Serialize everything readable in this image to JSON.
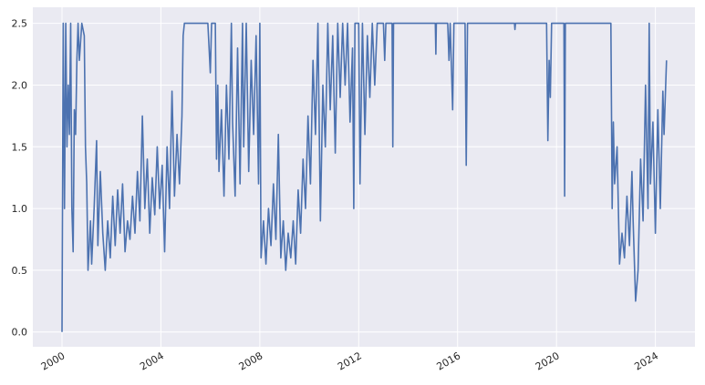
{
  "chart_data": {
    "type": "line",
    "x": [
      2000.0,
      2000.05,
      2000.1,
      2000.15,
      2000.2,
      2000.25,
      2000.3,
      2000.35,
      2000.4,
      2000.45,
      2000.5,
      2000.55,
      2000.6,
      2000.65,
      2000.7,
      2000.8,
      2000.9,
      2000.95,
      2001.0,
      2001.05,
      2001.15,
      2001.2,
      2001.3,
      2001.4,
      2001.45,
      2001.55,
      2001.65,
      2001.75,
      2001.85,
      2001.95,
      2002.05,
      2002.15,
      2002.25,
      2002.35,
      2002.45,
      2002.55,
      2002.65,
      2002.75,
      2002.85,
      2002.95,
      2003.05,
      2003.15,
      2003.25,
      2003.35,
      2003.45,
      2003.55,
      2003.65,
      2003.75,
      2003.85,
      2003.95,
      2004.05,
      2004.15,
      2004.25,
      2004.35,
      2004.45,
      2004.55,
      2004.65,
      2004.75,
      2004.85,
      2004.9,
      2004.95,
      2005.9,
      2006.0,
      2006.05,
      2006.2,
      2006.25,
      2006.3,
      2006.35,
      2006.45,
      2006.55,
      2006.65,
      2006.75,
      2006.85,
      2006.9,
      2007.0,
      2007.1,
      2007.2,
      2007.3,
      2007.35,
      2007.45,
      2007.55,
      2007.65,
      2007.75,
      2007.85,
      2007.95,
      2008.0,
      2008.05,
      2008.15,
      2008.25,
      2008.35,
      2008.45,
      2008.55,
      2008.65,
      2008.75,
      2008.85,
      2008.95,
      2009.05,
      2009.15,
      2009.25,
      2009.35,
      2009.45,
      2009.55,
      2009.65,
      2009.75,
      2009.85,
      2009.95,
      2010.05,
      2010.15,
      2010.25,
      2010.35,
      2010.45,
      2010.55,
      2010.65,
      2010.75,
      2010.85,
      2010.95,
      2011.05,
      2011.15,
      2011.25,
      2011.35,
      2011.45,
      2011.55,
      2011.65,
      2011.75,
      2011.8,
      2011.85,
      2012.0,
      2012.05,
      2012.15,
      2012.25,
      2012.35,
      2012.45,
      2012.55,
      2012.65,
      2012.75,
      2013.0,
      2013.05,
      2013.1,
      2013.35,
      2013.38,
      2013.41,
      2015.1,
      2015.12,
      2015.14,
      2015.6,
      2015.65,
      2015.7,
      2015.8,
      2015.85,
      2016.3,
      2016.35,
      2016.4,
      2018.3,
      2018.32,
      2018.34,
      2019.6,
      2019.65,
      2019.7,
      2019.75,
      2019.8,
      2020.3,
      2020.33,
      2020.36,
      2022.2,
      2022.25,
      2022.3,
      2022.35,
      2022.45,
      2022.55,
      2022.65,
      2022.75,
      2022.85,
      2022.95,
      2023.05,
      2023.1,
      2023.2,
      2023.3,
      2023.4,
      2023.5,
      2023.6,
      2023.7,
      2023.75,
      2023.8,
      2023.9,
      2024.0,
      2024.1,
      2024.2,
      2024.3,
      2024.35,
      2024.45
    ],
    "series": [
      {
        "color": "#4c72b0",
        "values": [
          0.0,
          2.5,
          1.0,
          2.5,
          1.5,
          2.0,
          1.6,
          2.5,
          1.0,
          0.65,
          1.8,
          1.6,
          2.2,
          2.5,
          2.2,
          2.5,
          2.4,
          1.5,
          1.2,
          0.5,
          0.9,
          0.55,
          1.0,
          1.55,
          0.7,
          1.3,
          0.8,
          0.5,
          0.9,
          0.6,
          1.1,
          0.7,
          1.15,
          0.8,
          1.2,
          0.65,
          0.9,
          0.75,
          1.1,
          0.8,
          1.3,
          0.9,
          1.75,
          1.0,
          1.4,
          0.8,
          1.25,
          0.95,
          1.5,
          1.0,
          1.35,
          0.65,
          1.5,
          1.0,
          1.95,
          1.1,
          1.6,
          1.2,
          1.75,
          2.4,
          2.5,
          2.5,
          2.1,
          2.5,
          2.5,
          1.4,
          2.0,
          1.3,
          1.8,
          1.1,
          2.0,
          1.4,
          2.5,
          1.7,
          1.1,
          2.3,
          1.2,
          2.5,
          1.5,
          2.5,
          1.3,
          2.2,
          1.6,
          2.4,
          1.2,
          2.5,
          0.6,
          0.9,
          0.55,
          1.0,
          0.7,
          1.2,
          0.75,
          1.6,
          0.6,
          0.9,
          0.5,
          0.8,
          0.6,
          0.9,
          0.55,
          1.15,
          0.8,
          1.4,
          1.0,
          1.75,
          1.2,
          2.2,
          1.6,
          2.5,
          0.9,
          2.0,
          1.5,
          2.5,
          1.8,
          2.4,
          1.45,
          2.5,
          1.9,
          2.5,
          2.0,
          2.5,
          1.7,
          2.3,
          1.0,
          2.5,
          2.5,
          1.2,
          2.5,
          1.6,
          2.4,
          1.9,
          2.5,
          2.0,
          2.5,
          2.5,
          2.2,
          2.5,
          2.5,
          1.5,
          2.5,
          2.5,
          2.25,
          2.5,
          2.5,
          2.2,
          2.5,
          1.8,
          2.5,
          2.5,
          1.35,
          2.5,
          2.5,
          2.45,
          2.5,
          2.5,
          1.55,
          2.2,
          1.9,
          2.5,
          2.5,
          1.1,
          2.5,
          2.5,
          1.0,
          1.7,
          1.2,
          1.5,
          0.55,
          0.8,
          0.6,
          1.1,
          0.7,
          1.3,
          0.9,
          0.25,
          0.5,
          1.4,
          0.9,
          2.0,
          1.0,
          2.5,
          1.2,
          1.7,
          0.8,
          1.8,
          1.0,
          1.95,
          1.6,
          2.2
        ]
      }
    ],
    "xlim": [
      1998.82,
      2025.6
    ],
    "xticks": [
      2000,
      2004,
      2008,
      2012,
      2016,
      2020,
      2024
    ],
    "ylim": [
      -0.12,
      2.63
    ],
    "yticks": [
      {
        "value": 0,
        "label": "0.0"
      },
      {
        "value": 0.5,
        "label": "0.5"
      },
      {
        "value": 1,
        "label": "1.0"
      },
      {
        "value": 1.5,
        "label": "1.5"
      },
      {
        "value": 2,
        "label": "2.0"
      },
      {
        "value": 2.5,
        "label": "2.5"
      }
    ],
    "grid": true
  }
}
